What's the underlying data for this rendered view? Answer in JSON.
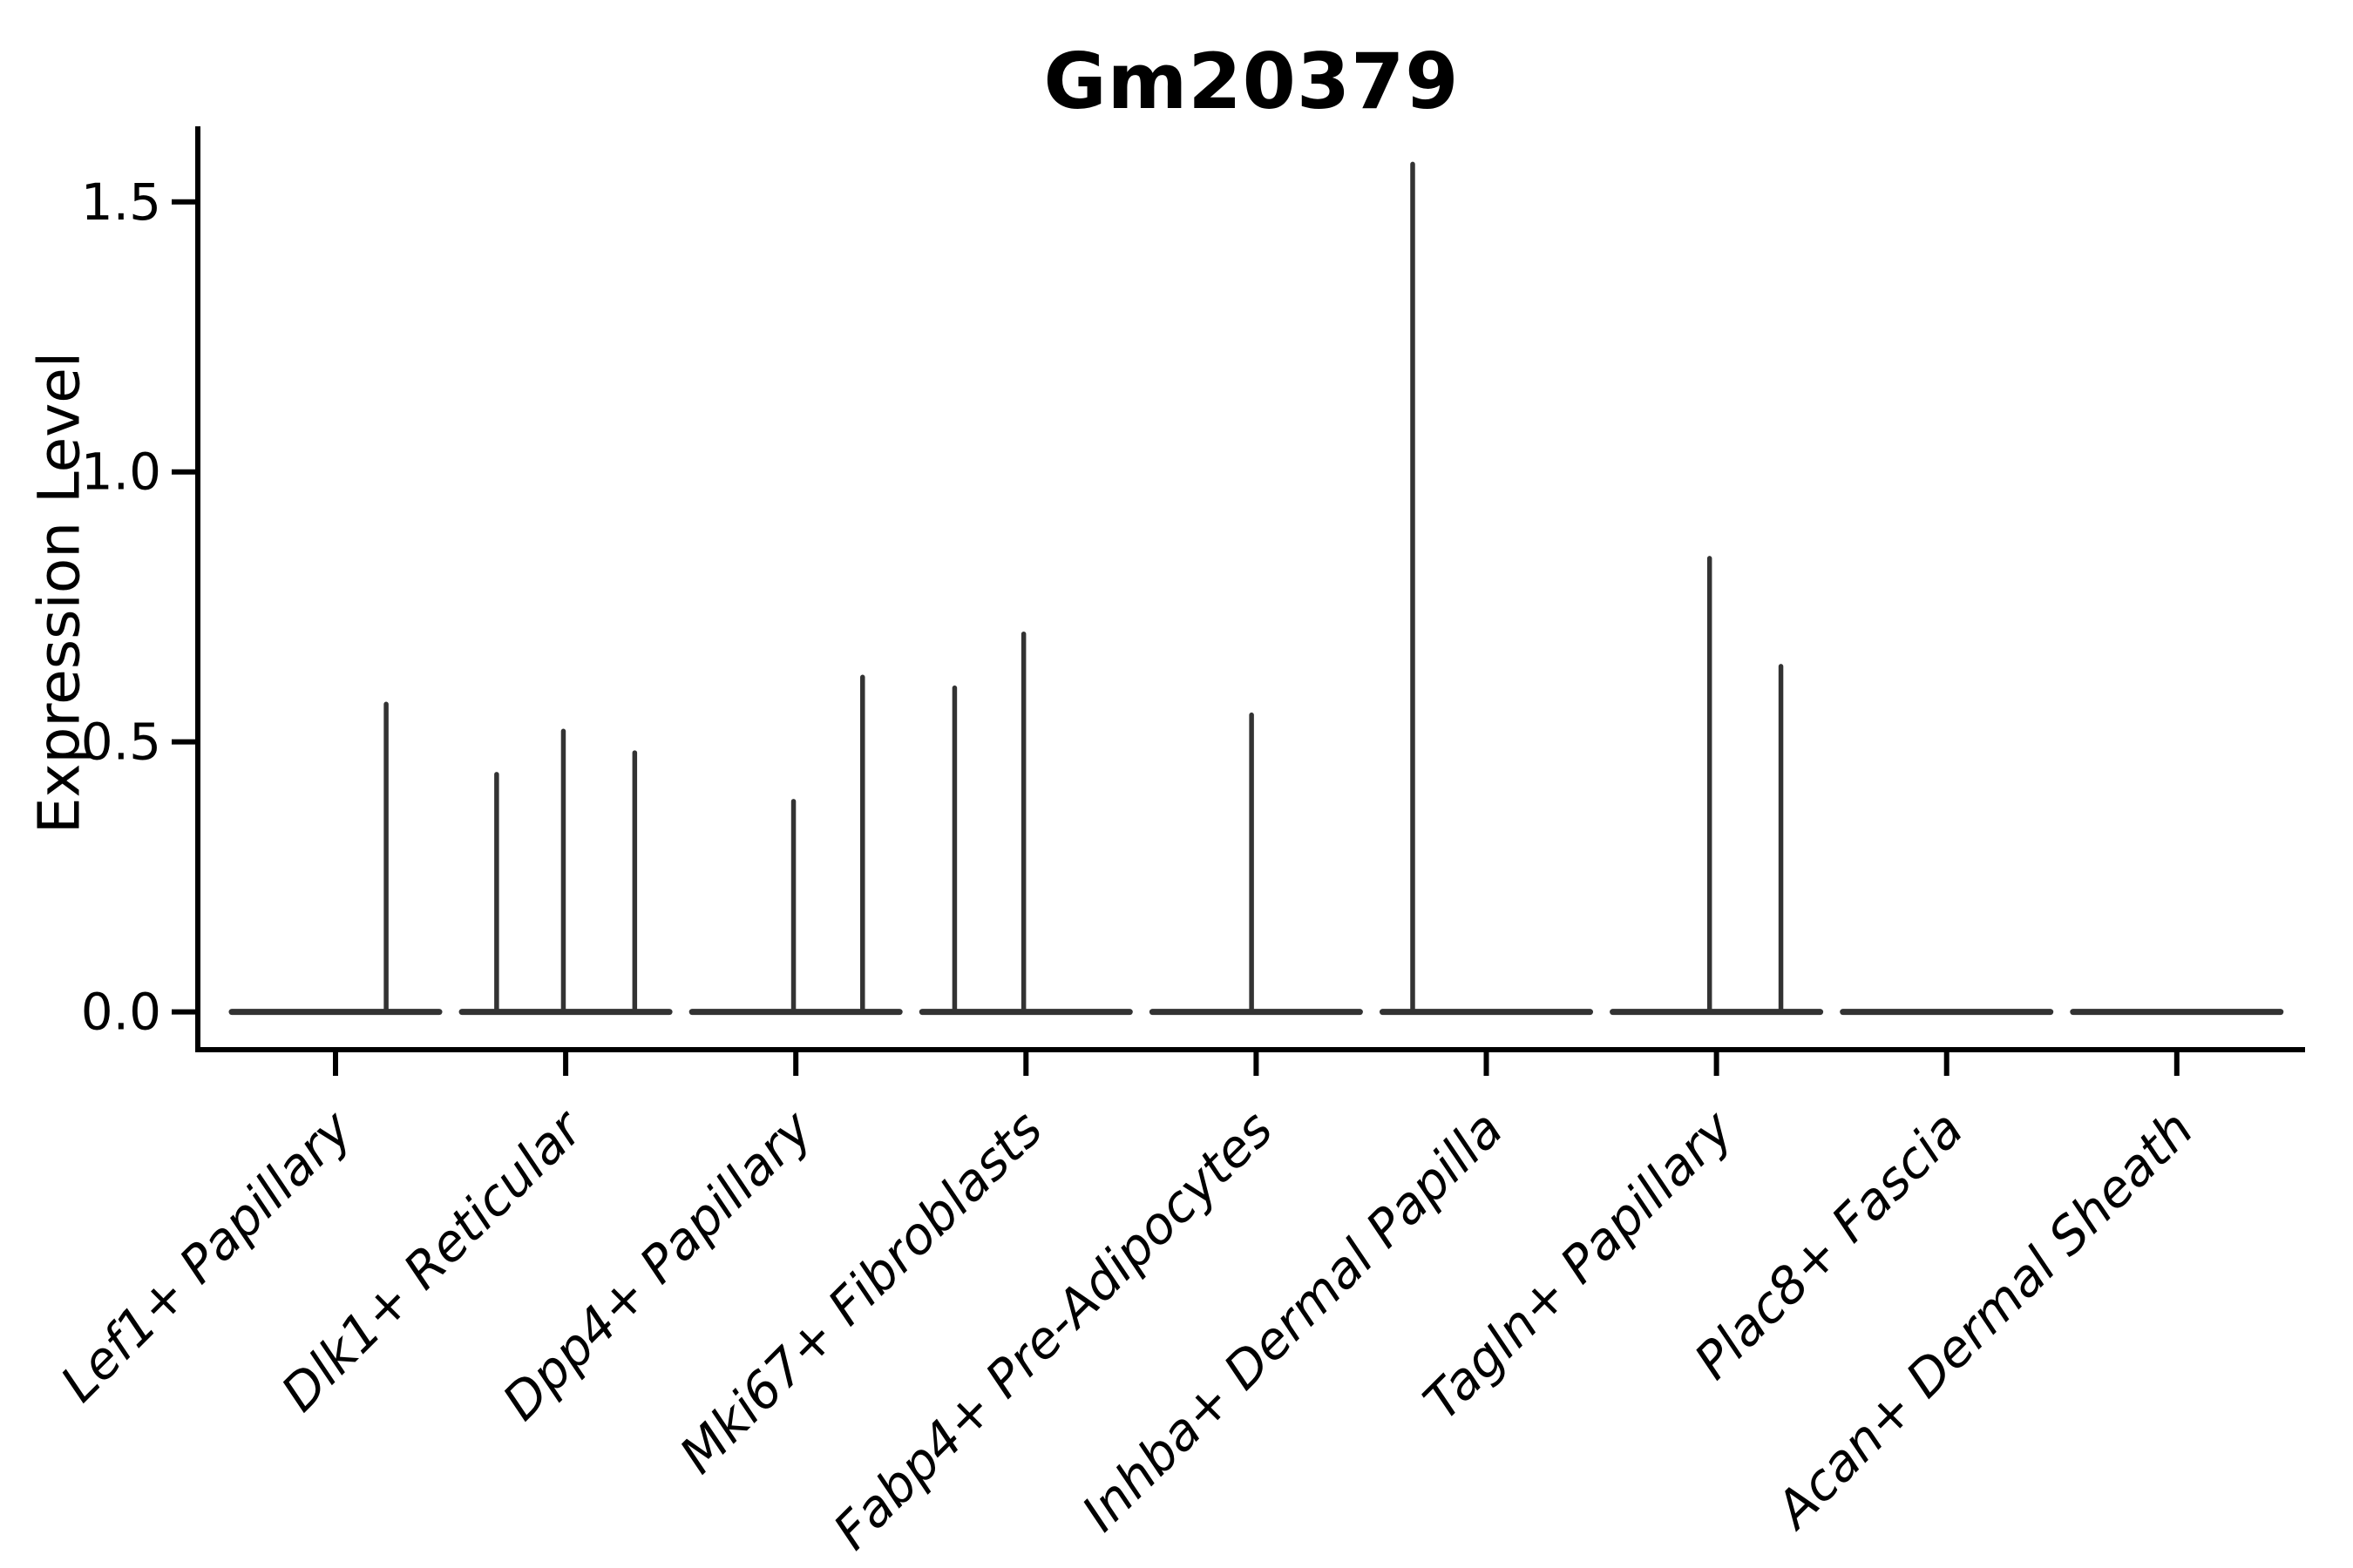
{
  "figure": {
    "title": "Gm20379",
    "background_color": "#ffffff"
  },
  "chart_data": {
    "type": "violin",
    "title": "Gm20379",
    "xlabel": "",
    "ylabel": "Expression Level",
    "legend": null,
    "grid": false,
    "ylim": [
      -0.07,
      1.64
    ],
    "ytick_values": [
      0.0,
      0.5,
      1.0,
      1.5
    ],
    "ytick_labels": [
      "0.0",
      "0.5",
      "1.0",
      "1.5"
    ],
    "categories": [
      "Lef1+ Papillary",
      "Dlk1+ Reticular",
      "Dpp4+ Papillary",
      "Mki67+ Fibroblasts",
      "Fabp4+ Pre-Adipocytes",
      "Inhba+ Dermal Papilla",
      "Tagln+ Papillary",
      "Plac8+ Fascia",
      "Acan+ Dermal Sheath"
    ],
    "violins": [
      {
        "category": "Lef1+ Papillary",
        "baseline_value": 0.0,
        "spikes": [
          {
            "offset": 0.22,
            "value": 0.57
          }
        ]
      },
      {
        "category": "Dlk1+ Reticular",
        "baseline_value": 0.0,
        "spikes": [
          {
            "offset": -0.3,
            "value": 0.44
          },
          {
            "offset": -0.01,
            "value": 0.52
          },
          {
            "offset": 0.3,
            "value": 0.48
          }
        ]
      },
      {
        "category": "Dpp4+ Papillary",
        "baseline_value": 0.0,
        "spikes": [
          {
            "offset": -0.01,
            "value": 0.39
          },
          {
            "offset": 0.29,
            "value": 0.62
          }
        ]
      },
      {
        "category": "Mki67+ Fibroblasts",
        "baseline_value": 0.0,
        "spikes": [
          {
            "offset": -0.31,
            "value": 0.6
          },
          {
            "offset": -0.01,
            "value": 0.7
          }
        ]
      },
      {
        "category": "Fabp4+ Pre-Adipocytes",
        "baseline_value": 0.0,
        "spikes": [
          {
            "offset": -0.02,
            "value": 0.55
          }
        ]
      },
      {
        "category": "Inhba+ Dermal Papilla",
        "baseline_value": 0.0,
        "spikes": [
          {
            "offset": -0.32,
            "value": 1.57
          }
        ]
      },
      {
        "category": "Tagln+ Papillary",
        "baseline_value": 0.0,
        "spikes": [
          {
            "offset": -0.03,
            "value": 0.84
          },
          {
            "offset": 0.28,
            "value": 0.64
          }
        ]
      },
      {
        "category": "Plac8+ Fascia",
        "baseline_value": 0.0,
        "spikes": []
      },
      {
        "category": "Acan+ Dermal Sheath",
        "baseline_value": 0.0,
        "spikes": []
      }
    ],
    "offset_meaning": "spike horizontal position as fraction of one category slot width, relative to the category center",
    "colors": {
      "violin": "#333333",
      "axis": "#000000",
      "text": "#000000"
    }
  }
}
